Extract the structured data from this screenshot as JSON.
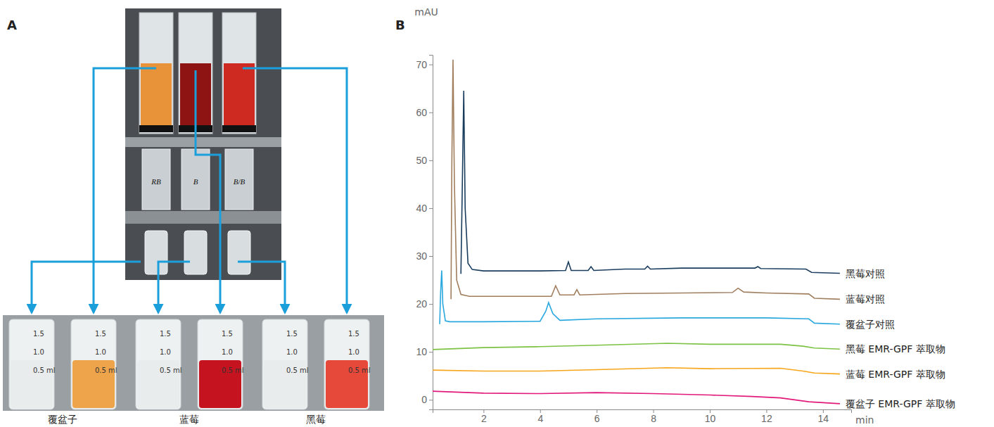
{
  "panel_a": {
    "letter": "A",
    "fruit_labels": [
      "覆盆子",
      "蓝莓",
      "黑莓"
    ],
    "tube_labels": [
      "RB",
      "B",
      "B/B"
    ],
    "vial_marks": [
      "1.5",
      "1.0",
      "0.5 ml"
    ]
  },
  "chart_data": {
    "type": "line",
    "letter": "B",
    "x_label": "min",
    "y_label": "mAU",
    "xlim": [
      0.2,
      15.0
    ],
    "xticks": [
      2,
      4,
      6,
      8,
      10,
      12,
      14
    ],
    "ylim": [
      -2,
      72
    ],
    "yticks": [
      0,
      10,
      20,
      30,
      40,
      50,
      60,
      70
    ],
    "grid": false,
    "series": [
      {
        "name": "黑莓对照",
        "color": "#1a3d5e",
        "x": [
          1.2,
          1.25,
          1.3,
          1.35,
          1.45,
          1.6,
          2,
          3,
          4,
          4.9,
          5.0,
          5.1,
          5.7,
          5.8,
          5.9,
          7,
          7.7,
          7.8,
          7.9,
          9,
          11,
          11.6,
          11.7,
          11.8,
          13.4,
          13.6,
          14.6
        ],
        "values": [
          26.3,
          45,
          64.5,
          40,
          28.5,
          27.2,
          26.9,
          26.9,
          26.9,
          27,
          28.8,
          27,
          27,
          27.8,
          27,
          27.3,
          27.3,
          27.9,
          27.3,
          27.5,
          27.5,
          27.5,
          27.8,
          27.4,
          27.3,
          26.6,
          26.4
        ]
      },
      {
        "name": "蓝莓对照",
        "color": "#a07e5e",
        "x": [
          0.85,
          0.88,
          0.92,
          0.97,
          1.05,
          1.2,
          1.5,
          3,
          4.4,
          4.55,
          4.7,
          5.2,
          5.3,
          5.4,
          7,
          9,
          10.8,
          11.0,
          11.2,
          12,
          13.5,
          13.7,
          14.6
        ],
        "values": [
          21,
          50,
          71,
          45,
          25,
          22,
          21.6,
          21.6,
          21.6,
          23.8,
          21.9,
          21.9,
          23,
          21.9,
          22.2,
          22.3,
          22.4,
          23.3,
          22.5,
          22.3,
          22.1,
          21.2,
          21
        ]
      },
      {
        "name": "覆盆子对照",
        "color": "#29a8df",
        "x": [
          0.45,
          0.48,
          0.52,
          0.56,
          0.65,
          0.8,
          2,
          4.0,
          4.2,
          4.3,
          4.45,
          4.7,
          6,
          9,
          12,
          13.5,
          13.7,
          14.6
        ],
        "values": [
          15.8,
          22,
          27,
          20,
          16.5,
          16.3,
          16.3,
          16.4,
          18.5,
          20.3,
          18,
          16.6,
          16.9,
          17.1,
          17.1,
          16.9,
          16,
          15.8
        ]
      },
      {
        "name": "黑莓 EMR-GPF 萃取物",
        "color": "#7cc243",
        "x": [
          0.2,
          2,
          4,
          6,
          8.5,
          10,
          12.5,
          13.3,
          13.7,
          14.6
        ],
        "values": [
          10.5,
          10.9,
          11.1,
          11.4,
          11.8,
          11.6,
          11.6,
          11.2,
          10.8,
          10.6
        ]
      },
      {
        "name": "蓝莓 EMR-GPF 萃取物",
        "color": "#f7a51b",
        "x": [
          0.2,
          2,
          4,
          6,
          8.5,
          10,
          12.5,
          13.3,
          13.7,
          14.6
        ],
        "values": [
          6.2,
          6.0,
          6.0,
          6.3,
          6.7,
          6.5,
          6.6,
          6.0,
          5.6,
          5.4
        ]
      },
      {
        "name": "覆盆子 EMR-GPF 萃取物",
        "color": "#e2187a",
        "x": [
          0.2,
          2,
          4,
          6,
          8,
          10,
          11.5,
          12.5,
          13.5,
          14.6
        ],
        "values": [
          1.8,
          1.4,
          1.3,
          1.5,
          1.3,
          1.0,
          0.7,
          0.4,
          -0.4,
          -0.8
        ]
      }
    ]
  }
}
